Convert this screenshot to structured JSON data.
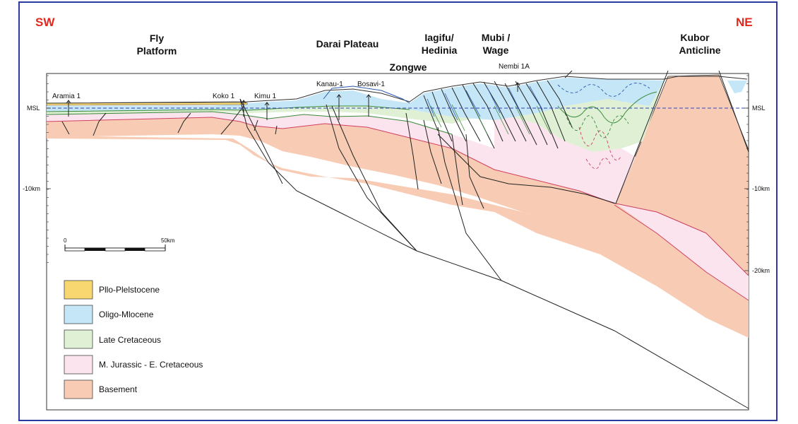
{
  "directions": {
    "left": "SW",
    "right": "NE"
  },
  "regions": {
    "fly_line1": "Fly",
    "fly_line2": "Platform",
    "darai": "Darai Plateau",
    "zongwe": "Zongwe",
    "iagifu_line1": "Iagifu/",
    "iagifu_line2": "Hedinia",
    "mubi_line1": "Mubi /",
    "mubi_line2": "Wage",
    "kubor_line1": "Kubor",
    "kubor_line2": "Anticline"
  },
  "wells": [
    "Aramia 1",
    "Koko 1",
    "Kimu 1",
    "Kanau-1",
    "Bosavi-1",
    "Nembi 1A"
  ],
  "axis": {
    "left": [
      "MSL",
      "-10km"
    ],
    "right": [
      "MSL",
      "-10km",
      "-20km"
    ]
  },
  "scale_bar": {
    "start": "0",
    "end": "50km"
  },
  "legend": [
    {
      "label": "Pllo-Plelstocene",
      "color": "#f9d770"
    },
    {
      "label": "Oligo-Mlocene",
      "color": "#c5e6f6"
    },
    {
      "label": "Late Cretaceous",
      "color": "#dff0d5"
    },
    {
      "label": "M. Jurassic - E. Cretaceous",
      "color": "#fbe4ee"
    },
    {
      "label": "Basement",
      "color": "#f8ccb4"
    }
  ],
  "colors": {
    "frame": "#2a3aa0",
    "direction_label": "#e0281e",
    "pliocene": "#f9d770",
    "miocene": "#c5e6f6",
    "cretaceous_late": "#dff0d5",
    "jurassic": "#fbe4ee",
    "basement": "#f8ccb4"
  }
}
